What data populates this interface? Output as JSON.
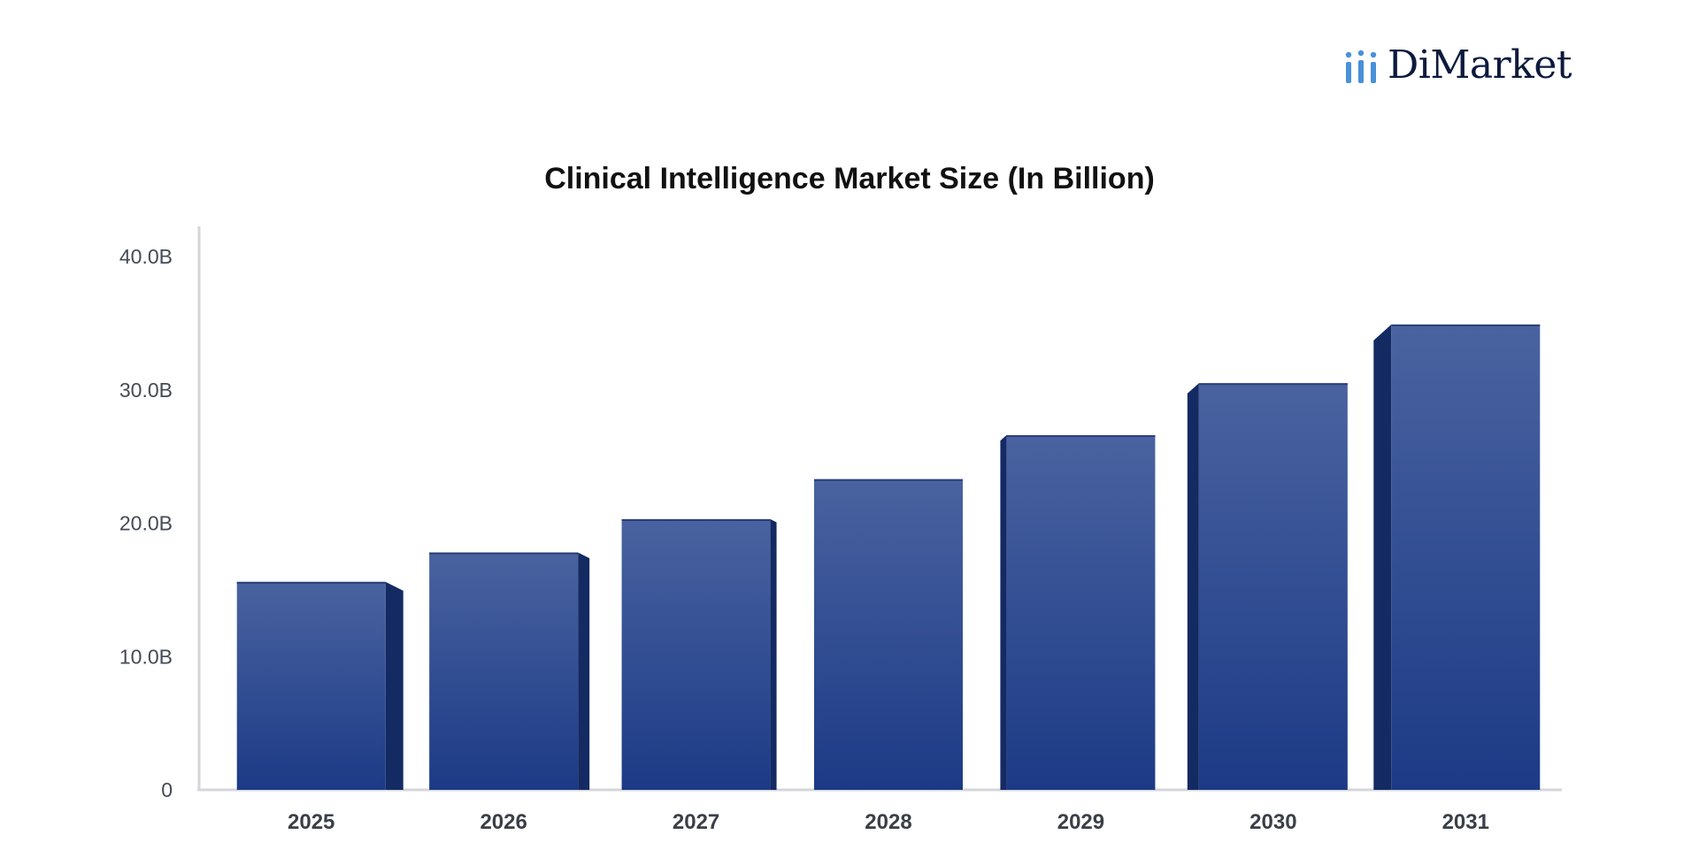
{
  "brand": {
    "name": "DiMarket",
    "accent_color": "#4a90d9",
    "text_color": "#0c1a3d",
    "icon": "bar-chart-icon"
  },
  "chart_data": {
    "type": "bar",
    "title": "Clinical Intelligence Market Size (In Billion)",
    "xlabel": "",
    "ylabel": "",
    "categories": [
      "2025",
      "2026",
      "2027",
      "2028",
      "2029",
      "2030",
      "2031"
    ],
    "values": [
      15.6,
      17.8,
      20.3,
      23.3,
      26.6,
      30.5,
      34.9
    ],
    "ylim": [
      0,
      40
    ],
    "yticks": [
      0,
      10,
      20,
      30,
      40
    ],
    "ytick_labels": [
      "0",
      "10.0B",
      "20.0B",
      "30.0B",
      "40.0B"
    ],
    "grid": false,
    "legend": "none",
    "bar_color_top": "#4a63a0",
    "bar_color_bottom": "#1c3a86",
    "bar_side_color": "#142a63"
  }
}
